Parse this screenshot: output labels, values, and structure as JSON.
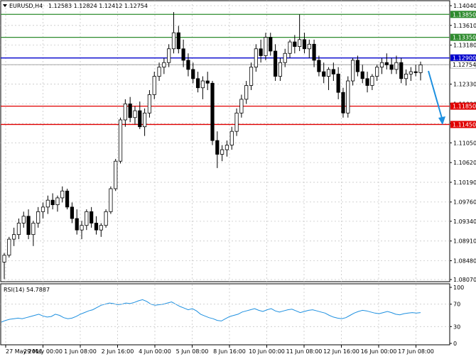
{
  "header": {
    "symbol": "EURUSD,H4",
    "ohlc": "1.12583 1.12824 1.12412 1.12754"
  },
  "price_axis": {
    "ticks": [
      "1.14040",
      "1.13610",
      "1.13180",
      "1.12750",
      "1.12330",
      "1.11900",
      "1.11470",
      "1.11050",
      "1.10620",
      "1.10190",
      "1.09760",
      "1.09340",
      "1.08910",
      "1.08480",
      "1.08070"
    ]
  },
  "levels": [
    {
      "label": "1.13850",
      "value": 1.1385,
      "color": "#2e8b2e"
    },
    {
      "label": "1.13350",
      "value": 1.1335,
      "color": "#2e8b2e"
    },
    {
      "label": "1.12900",
      "value": 1.129,
      "color": "#0000cc"
    },
    {
      "label": "1.11850",
      "value": 1.1185,
      "color": "#e00000"
    },
    {
      "label": "1.11450",
      "value": 1.1145,
      "color": "#e00000"
    }
  ],
  "current_price": {
    "label": "1.12754",
    "value": 1.12754
  },
  "rsi": {
    "label": "RSI(14) 54.7887",
    "ticks": [
      "100",
      "70",
      "30",
      "0"
    ],
    "values": [
      38,
      41,
      43,
      44,
      45,
      44,
      46,
      48,
      50,
      52,
      49,
      47,
      48,
      52,
      50,
      46,
      44,
      45,
      48,
      52,
      55,
      58,
      60,
      64,
      68,
      70,
      72,
      71,
      69,
      70,
      72,
      71,
      73,
      76,
      78,
      75,
      70,
      68,
      69,
      70,
      72,
      74,
      70,
      66,
      63,
      60,
      62,
      58,
      52,
      49,
      46,
      44,
      41,
      40,
      44,
      48,
      50,
      52,
      56,
      58,
      60,
      62,
      59,
      57,
      60,
      62,
      58,
      56,
      58,
      60,
      61,
      58,
      55,
      57,
      59,
      60,
      58,
      56,
      54,
      50,
      47,
      45,
      44,
      46,
      50,
      54,
      57,
      59,
      58,
      56,
      54,
      53,
      55,
      57,
      55,
      52,
      51,
      53,
      54,
      55,
      54,
      55
    ]
  },
  "time_axis": [
    "27 May 2015",
    "29 May 00:00",
    "1 Jun 08:00",
    "2 Jun 16:00",
    "4 Jun 00:00",
    "5 Jun 08:00",
    "8 Jun 16:00",
    "10 Jun 00:00",
    "11 Jun 08:00",
    "12 Jun 16:00",
    "16 Jun 00:00",
    "17 Jun 08:00"
  ],
  "colors": {
    "arrow": "#1e90e0",
    "rsi_line": "#1e90e0",
    "grid": "#c8c8c8"
  },
  "chart_data": {
    "type": "candlestick",
    "title": "EURUSD,H4",
    "ylim": [
      1.0807,
      1.1404
    ],
    "candles": [
      [
        1.0845,
        1.0865,
        1.0808,
        1.086
      ],
      [
        1.086,
        1.09,
        1.0855,
        1.0895
      ],
      [
        1.0895,
        1.092,
        1.088,
        1.0905
      ],
      [
        1.0905,
        1.094,
        1.0895,
        1.093
      ],
      [
        1.093,
        1.0955,
        1.092,
        1.0945
      ],
      [
        1.0945,
        1.096,
        1.0895,
        1.0905
      ],
      [
        1.0905,
        1.0935,
        1.088,
        1.093
      ],
      [
        1.093,
        1.0965,
        1.092,
        1.0955
      ],
      [
        1.0955,
        1.0975,
        1.094,
        1.0965
      ],
      [
        1.0965,
        1.099,
        1.095,
        1.098
      ],
      [
        1.098,
        1.0995,
        1.096,
        1.097
      ],
      [
        1.097,
        1.099,
        1.0955,
        1.0985
      ],
      [
        1.0985,
        1.101,
        1.0975,
        1.1
      ],
      [
        1.1,
        1.1005,
        1.096,
        1.0965
      ],
      [
        1.0965,
        1.0975,
        1.093,
        1.094
      ],
      [
        1.094,
        1.096,
        1.0905,
        1.0915
      ],
      [
        1.0915,
        1.0935,
        1.0895,
        1.0925
      ],
      [
        1.0925,
        1.096,
        1.0915,
        1.0955
      ],
      [
        1.0955,
        1.0965,
        1.092,
        1.093
      ],
      [
        1.093,
        1.0945,
        1.0905,
        1.0915
      ],
      [
        1.0915,
        1.093,
        1.09,
        1.0925
      ],
      [
        1.0925,
        1.096,
        1.092,
        1.0955
      ],
      [
        1.0955,
        1.101,
        1.095,
        1.1005
      ],
      [
        1.1005,
        1.107,
        1.1,
        1.1065
      ],
      [
        1.1065,
        1.116,
        1.106,
        1.1155
      ],
      [
        1.1155,
        1.12,
        1.114,
        1.119
      ],
      [
        1.119,
        1.1205,
        1.115,
        1.116
      ],
      [
        1.116,
        1.1185,
        1.1145,
        1.1175
      ],
      [
        1.1175,
        1.1195,
        1.1135,
        1.114
      ],
      [
        1.114,
        1.118,
        1.112,
        1.117
      ],
      [
        1.117,
        1.122,
        1.116,
        1.121
      ],
      [
        1.121,
        1.126,
        1.12,
        1.125
      ],
      [
        1.125,
        1.128,
        1.124,
        1.127
      ],
      [
        1.127,
        1.129,
        1.1255,
        1.128
      ],
      [
        1.128,
        1.132,
        1.127,
        1.131
      ],
      [
        1.131,
        1.139,
        1.13,
        1.1345
      ],
      [
        1.1345,
        1.136,
        1.13,
        1.131
      ],
      [
        1.131,
        1.133,
        1.127,
        1.1285
      ],
      [
        1.1285,
        1.13,
        1.125,
        1.1265
      ],
      [
        1.1265,
        1.128,
        1.1235,
        1.1245
      ],
      [
        1.1245,
        1.126,
        1.1215,
        1.1225
      ],
      [
        1.1225,
        1.125,
        1.12,
        1.124
      ],
      [
        1.124,
        1.126,
        1.122,
        1.1235
      ],
      [
        1.1235,
        1.124,
        1.11,
        1.111
      ],
      [
        1.111,
        1.113,
        1.105,
        1.108
      ],
      [
        1.108,
        1.11,
        1.1065,
        1.109
      ],
      [
        1.109,
        1.111,
        1.1075,
        1.11
      ],
      [
        1.11,
        1.114,
        1.109,
        1.113
      ],
      [
        1.113,
        1.118,
        1.112,
        1.117
      ],
      [
        1.117,
        1.121,
        1.116,
        1.12
      ],
      [
        1.12,
        1.124,
        1.119,
        1.123
      ],
      [
        1.123,
        1.128,
        1.122,
        1.127
      ],
      [
        1.127,
        1.132,
        1.126,
        1.131
      ],
      [
        1.131,
        1.133,
        1.128,
        1.1295
      ],
      [
        1.1295,
        1.1345,
        1.1285,
        1.1335
      ],
      [
        1.1335,
        1.1345,
        1.1295,
        1.1305
      ],
      [
        1.1305,
        1.132,
        1.124,
        1.125
      ],
      [
        1.125,
        1.129,
        1.124,
        1.128
      ],
      [
        1.128,
        1.131,
        1.127,
        1.13
      ],
      [
        1.13,
        1.133,
        1.129,
        1.1325
      ],
      [
        1.1325,
        1.134,
        1.13,
        1.1315
      ],
      [
        1.1315,
        1.1385,
        1.1305,
        1.133
      ],
      [
        1.133,
        1.1345,
        1.13,
        1.131
      ],
      [
        1.131,
        1.133,
        1.129,
        1.132
      ],
      [
        1.132,
        1.133,
        1.127,
        1.1285
      ],
      [
        1.1285,
        1.1295,
        1.125,
        1.126
      ],
      [
        1.126,
        1.128,
        1.1235,
        1.125
      ],
      [
        1.125,
        1.127,
        1.122,
        1.1265
      ],
      [
        1.1265,
        1.128,
        1.124,
        1.1255
      ],
      [
        1.1255,
        1.127,
        1.12,
        1.1215
      ],
      [
        1.1215,
        1.1225,
        1.116,
        1.117
      ],
      [
        1.117,
        1.125,
        1.116,
        1.124
      ],
      [
        1.124,
        1.129,
        1.123,
        1.1285
      ],
      [
        1.1285,
        1.1295,
        1.125,
        1.126
      ],
      [
        1.126,
        1.1275,
        1.1235,
        1.1245
      ],
      [
        1.1245,
        1.126,
        1.1215,
        1.123
      ],
      [
        1.123,
        1.1255,
        1.122,
        1.125
      ],
      [
        1.125,
        1.1275,
        1.124,
        1.127
      ],
      [
        1.127,
        1.129,
        1.1255,
        1.128
      ],
      [
        1.128,
        1.13,
        1.1265,
        1.1275
      ],
      [
        1.1275,
        1.129,
        1.1255,
        1.1265
      ],
      [
        1.1265,
        1.1295,
        1.1255,
        1.128
      ],
      [
        1.128,
        1.129,
        1.1235,
        1.1245
      ],
      [
        1.1245,
        1.1265,
        1.123,
        1.1255
      ],
      [
        1.1255,
        1.127,
        1.124,
        1.126
      ],
      [
        1.126,
        1.1275,
        1.125,
        1.1258
      ],
      [
        1.1258,
        1.1282,
        1.1241,
        1.1275
      ]
    ],
    "levels": [
      1.1385,
      1.1335,
      1.129,
      1.1185,
      1.1145
    ],
    "rsi_ylim": [
      0,
      100
    ]
  }
}
